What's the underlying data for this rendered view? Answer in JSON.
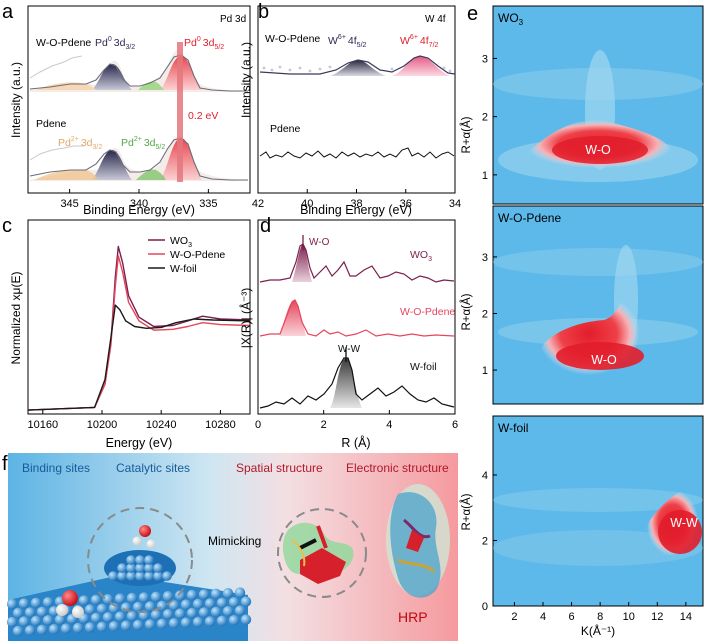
{
  "panel_letters": {
    "a": "a",
    "b": "b",
    "c": "c",
    "d": "d",
    "e": "e",
    "f": "f"
  },
  "colors": {
    "pd0": "#e8474f",
    "pd0_dark": "#4a4a7a",
    "pd2": "#f0c79a",
    "pd2_green": "#7fc66a",
    "wo3": "#7b1f4c",
    "wopdene": "#e5465c",
    "wfoil": "#1a1a1a",
    "heat_bg": "#4fb4e6",
    "heat_hot": "#e21d2b"
  },
  "chart_data": [
    {
      "id": "a",
      "type": "line",
      "title": "Pd 3d",
      "xlabel": "Binding Energy (eV)",
      "ylabel": "Intensity (a.u.)",
      "xlim": [
        348,
        332
      ],
      "xticks": [
        "345",
        "340",
        "335"
      ],
      "xtick_values": [
        345,
        340,
        335
      ],
      "series": [
        {
          "name": "W-O-Pdene",
          "peaks": [
            {
              "label": "Pd⁰ 3d3/2",
              "center": 341.0
            },
            {
              "label": "Pd⁰ 3d5/2",
              "center": 335.6
            },
            {
              "label": "Pd²⁺ 3d3/2",
              "center": 343.0
            },
            {
              "label": "Pd²⁺ 3d5/2",
              "center": 337.8
            }
          ]
        },
        {
          "name": "Pdene",
          "peaks": [
            {
              "label": "Pd⁰ 3d3/2",
              "center": 341.0
            },
            {
              "label": "Pd⁰ 3d5/2",
              "center": 335.4
            },
            {
              "label": "Pd²⁺ 3d3/2",
              "center": 343.0
            },
            {
              "label": "Pd²⁺ 3d5/2",
              "center": 337.8
            }
          ]
        }
      ],
      "labels": {
        "title": "Pd 3d",
        "s1": "W-O-Pdene",
        "s2": "Pdene",
        "pd0_32_top": "Pd",
        "pd0_52_top": "Pd",
        "pd2_32": "Pd",
        "pd2_52": "Pd",
        "pd0_32_sup": "0",
        "pd0_52_sup": "0",
        "pd2_32_sup": "2+",
        "pd2_52_sup": "2+",
        "sub_32": "3d",
        "sub_52": "3d",
        "sub_32_i": "3/2",
        "sub_52_i": "5/2",
        "shift": "0.2 eV"
      }
    },
    {
      "id": "b",
      "type": "line",
      "title": "W 4f",
      "xlabel": "Binding Energy (eV)",
      "ylabel": "Intensity (a.u.)",
      "xlim": [
        42,
        34
      ],
      "xticks": [
        "42",
        "40",
        "38",
        "36",
        "34"
      ],
      "xtick_values": [
        42,
        40,
        38,
        36,
        34
      ],
      "series": [
        {
          "name": "W-O-Pdene",
          "peaks": [
            {
              "label": "W⁶⁺ 4f5/2",
              "center": 37.7
            },
            {
              "label": "W⁶⁺ 4f7/2",
              "center": 35.5
            }
          ]
        },
        {
          "name": "Pdene",
          "peaks": []
        }
      ],
      "labels": {
        "title": "W 4f",
        "s1": "W-O-Pdene",
        "s2": "Pdene",
        "w52": "W",
        "w72": "W",
        "w_sup": "6+",
        "w52_sub": "4f",
        "w72_sub": "4f",
        "w52_i": "5/2",
        "w72_i": "7/2"
      }
    },
    {
      "id": "c",
      "type": "line",
      "title": "",
      "xlabel": "Energy (eV)",
      "ylabel": "Normalized xμ(E)",
      "xlim": [
        10150,
        10300
      ],
      "xticks": [
        "10160",
        "10200",
        "10240",
        "10280"
      ],
      "xtick_values": [
        10160,
        10200,
        10240,
        10280
      ],
      "series": [
        {
          "name": "WO3",
          "x": [
            10150,
            10195,
            10202,
            10206,
            10209,
            10211,
            10214,
            10218,
            10225,
            10235,
            10248,
            10258,
            10268,
            10280,
            10300
          ],
          "y": [
            0.02,
            0.05,
            0.3,
            0.75,
            1.45,
            1.78,
            1.6,
            1.25,
            1.02,
            0.92,
            0.93,
            0.98,
            1.03,
            1.0,
            0.99
          ]
        },
        {
          "name": "W-O-Pdene",
          "x": [
            10150,
            10195,
            10202,
            10206,
            10209,
            10211,
            10214,
            10218,
            10225,
            10235,
            10248,
            10258,
            10268,
            10280,
            10300
          ],
          "y": [
            0.02,
            0.05,
            0.3,
            0.72,
            1.35,
            1.68,
            1.5,
            1.18,
            0.98,
            0.88,
            0.89,
            0.92,
            0.96,
            0.94,
            0.93
          ]
        },
        {
          "name": "W-foil",
          "x": [
            10150,
            10195,
            10202,
            10206,
            10209,
            10212,
            10216,
            10222,
            10230,
            10240,
            10250,
            10262,
            10275,
            10300
          ],
          "y": [
            0.02,
            0.05,
            0.35,
            0.8,
            1.15,
            1.1,
            0.98,
            0.92,
            0.9,
            0.91,
            0.96,
            1.0,
            0.99,
            0.98
          ]
        }
      ],
      "labels": {
        "legend_wo3": "WO",
        "legend_wo3_sub": "3",
        "legend_wopdene": "W-O-Pdene",
        "legend_wfoil": "W-foil"
      }
    },
    {
      "id": "d",
      "type": "line",
      "title": "",
      "xlabel": "R (Å)",
      "ylabel": "|X(R)| (Å⁻³)",
      "xlim": [
        0,
        6
      ],
      "xticks": [
        "0",
        "2",
        "4",
        "6"
      ],
      "xtick_values": [
        0,
        2,
        4,
        6
      ],
      "series": [
        {
          "name": "WO3",
          "peak": {
            "label": "W-O",
            "r": 1.35
          }
        },
        {
          "name": "W-O-Pdene",
          "peak": {
            "label": "",
            "r": 1.15
          }
        },
        {
          "name": "W-foil",
          "peak": {
            "label": "W-W",
            "r": 2.65
          }
        }
      ],
      "labels": {
        "wo": "W-O",
        "ww": "W-W",
        "wo3": "WO",
        "wo3_sub": "3",
        "wopdene": "W-O-Pdene",
        "wfoil": "W-foil"
      }
    },
    {
      "id": "e",
      "type": "heatmap",
      "xlabel": "K(Å⁻¹)",
      "ylabel": "R+α(Å)",
      "xlim": [
        0.5,
        15.2
      ],
      "xticks": [
        "2",
        "4",
        "6",
        "8",
        "10",
        "12",
        "14"
      ],
      "xtick_values": [
        2,
        4,
        6,
        8,
        10,
        12,
        14
      ],
      "panels": [
        {
          "name": "WO3",
          "ylim": [
            0.5,
            3.9
          ],
          "yticks": [
            "1",
            "2",
            "3"
          ],
          "ytick_values": [
            1,
            2,
            3
          ],
          "hotspot": {
            "label": "W-O",
            "k": 8.3,
            "r": 1.3
          }
        },
        {
          "name": "W-O-Pdene",
          "ylim": [
            0.4,
            3.9
          ],
          "yticks": [
            "1",
            "2",
            "3"
          ],
          "ytick_values": [
            1,
            2,
            3
          ],
          "hotspot": {
            "label": "W-O",
            "k": 8.2,
            "r": 1.2
          }
        },
        {
          "name": "W-foil",
          "ylim": [
            0,
            5.8
          ],
          "yticks": [
            "0",
            "2",
            "4"
          ],
          "ytick_values": [
            0,
            2,
            4
          ],
          "hotspot": {
            "label": "W-W",
            "k": 14.0,
            "r": 2.6
          }
        }
      ],
      "labels": {
        "p1": "WO",
        "p1_sub": "3",
        "p2": "W-O-Pdene",
        "p3": "W-foil",
        "hot1": "W-O",
        "hot2": "W-O",
        "hot3": "W-W"
      }
    }
  ],
  "panel_f": {
    "binding": "Binding sites",
    "catalytic": "Catalytic sites",
    "spatial": "Spatial structure",
    "electronic": "Electronic structure",
    "mimicking": "Mimicking",
    "hrp": "HRP"
  }
}
